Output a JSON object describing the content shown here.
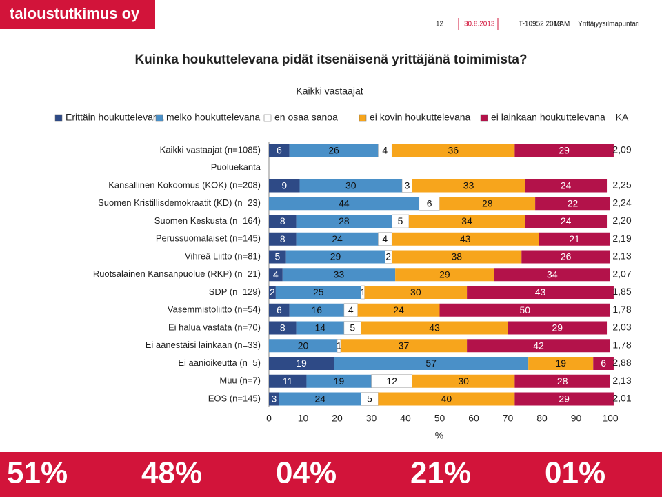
{
  "header": {
    "logo": "taloustutkimus oy",
    "page": "12",
    "date": "30.8.2013",
    "code": "T-10952 2013",
    "author": "MAM",
    "project": "Yrittäjyysilmapuntari"
  },
  "chart_data": {
    "type": "stacked-bar-horizontal",
    "title": "Kuinka houkuttelevana pidät itsenäisenä yrittäjänä toimimista?",
    "subtitle": "Kaikki vastaajat",
    "group_label": "Puoluekanta",
    "mean_header": "KA",
    "x_label": "%",
    "categories": [
      "Kaikki vastaajat (n=1085)",
      "Kansallinen Kokoomus (KOK) (n=208)",
      "Suomen Kristillisdemokraatit (KD) (n=23)",
      "Suomen Keskusta (n=164)",
      "Perussuomalaiset (n=145)",
      "Vihreä Liitto (n=81)",
      "Ruotsalainen Kansanpuolue (RKP) (n=21)",
      "SDP (n=129)",
      "Vasemmistoliitto (n=54)",
      "Ei halua vastata (n=70)",
      "Ei äänestäisi lainkaan (n=33)",
      "Ei äänioikeutta (n=5)",
      "Muu (n=7)",
      "EOS (n=145)"
    ],
    "series": [
      {
        "name": "Erittäin houkuttelevana",
        "color": "#2e4a86",
        "values": [
          6,
          9,
          0,
          8,
          8,
          5,
          4,
          2,
          6,
          8,
          0,
          19,
          11,
          3
        ]
      },
      {
        "name": "melko houkuttelevana",
        "color": "#4a90c8",
        "values": [
          26,
          30,
          44,
          28,
          24,
          29,
          33,
          25,
          16,
          14,
          20,
          57,
          19,
          24
        ]
      },
      {
        "name": "en osaa sanoa",
        "color": "#ffffff",
        "values": [
          4,
          3,
          6,
          5,
          4,
          2,
          0,
          1,
          4,
          5,
          1,
          0,
          12,
          5
        ]
      },
      {
        "name": "ei kovin houkuttelevana",
        "color": "#f7a51c",
        "values": [
          36,
          33,
          28,
          34,
          43,
          38,
          29,
          30,
          24,
          43,
          37,
          19,
          30,
          40
        ]
      },
      {
        "name": "ei lainkaan houkuttelevana",
        "color": "#b3124a",
        "values": [
          29,
          24,
          22,
          24,
          21,
          26,
          34,
          43,
          50,
          29,
          42,
          6,
          28,
          29
        ]
      }
    ],
    "means": [
      "2,09",
      "2,25",
      "2,24",
      "2,20",
      "2,19",
      "2,13",
      "2,07",
      "1,85",
      "1,78",
      "2,03",
      "1,78",
      "2,88",
      "2,13",
      "2,01"
    ],
    "xlim": [
      0,
      100
    ],
    "xticks": [
      0,
      10,
      20,
      30,
      40,
      50,
      60,
      70,
      80,
      90,
      100
    ]
  },
  "banner": [
    "51%",
    "48%",
    "04%",
    "21%",
    "01%"
  ]
}
